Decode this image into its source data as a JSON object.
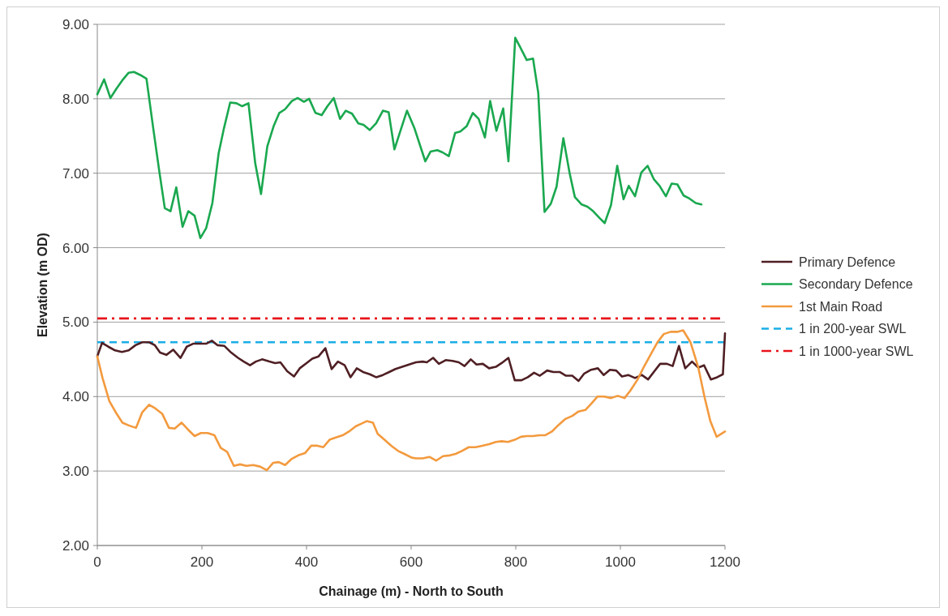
{
  "chart_data": {
    "type": "line",
    "xlabel": "Chainage (m) - North to South",
    "ylabel": "Elevation (m OD)",
    "xlim": [
      0,
      1200
    ],
    "xticks": [
      0,
      200,
      400,
      600,
      800,
      1000,
      1200
    ],
    "ylim": [
      2,
      9
    ],
    "yticks": [
      {
        "value": 2,
        "label": "2.00"
      },
      {
        "value": 3,
        "label": "3.00"
      },
      {
        "value": 4,
        "label": "4.00"
      },
      {
        "value": 5,
        "label": "5.00"
      },
      {
        "value": 6,
        "label": "6.00"
      },
      {
        "value": 7,
        "label": "7.00"
      },
      {
        "value": 8,
        "label": "8.00"
      },
      {
        "value": 9,
        "label": "9.00"
      }
    ],
    "grid": "y",
    "legend": "right",
    "line_style": "solid",
    "series": [
      {
        "name": "Primary Defence",
        "color": "#4f1f24",
        "x": [
          0,
          9,
          21,
          34,
          47,
          60,
          73,
          86,
          99,
          110,
          120,
          132,
          145,
          159,
          171,
          183,
          196,
          208,
          219,
          230,
          243,
          256,
          269,
          280,
          292,
          303,
          315,
          329,
          340,
          350,
          363,
          376,
          387,
          400,
          411,
          423,
          436,
          448,
          460,
          473,
          484,
          496,
          508,
          521,
          533,
          546,
          558,
          570,
          583,
          596,
          609,
          622,
          630,
          642,
          653,
          666,
          679,
          691,
          702,
          714,
          725,
          737,
          749,
          762,
          773,
          786,
          798,
          811,
          823,
          835,
          846,
          860,
          872,
          884,
          896,
          908,
          920,
          931,
          944,
          957,
          968,
          980,
          992,
          1003,
          1015,
          1028,
          1041,
          1053,
          1065,
          1076,
          1089,
          1100,
          1112,
          1124,
          1137,
          1149,
          1160,
          1173,
          1185,
          1196,
          1200
        ],
        "values": [
          4.54,
          4.72,
          4.67,
          4.62,
          4.6,
          4.62,
          4.69,
          4.73,
          4.73,
          4.69,
          4.59,
          4.56,
          4.63,
          4.52,
          4.67,
          4.71,
          4.71,
          4.71,
          4.75,
          4.69,
          4.68,
          4.59,
          4.52,
          4.47,
          4.42,
          4.47,
          4.5,
          4.47,
          4.45,
          4.46,
          4.34,
          4.27,
          4.38,
          4.45,
          4.51,
          4.54,
          4.65,
          4.37,
          4.47,
          4.42,
          4.26,
          4.38,
          4.33,
          4.3,
          4.26,
          4.29,
          4.33,
          4.37,
          4.4,
          4.43,
          4.46,
          4.47,
          4.46,
          4.52,
          4.44,
          4.49,
          4.48,
          4.46,
          4.41,
          4.5,
          4.43,
          4.44,
          4.38,
          4.4,
          4.45,
          4.52,
          4.22,
          4.22,
          4.26,
          4.32,
          4.28,
          4.35,
          4.33,
          4.33,
          4.28,
          4.28,
          4.21,
          4.31,
          4.36,
          4.38,
          4.29,
          4.36,
          4.35,
          4.27,
          4.29,
          4.25,
          4.29,
          4.23,
          4.34,
          4.44,
          4.44,
          4.41,
          4.68,
          4.38,
          4.47,
          4.39,
          4.42,
          4.23,
          4.26,
          4.3,
          4.85
        ]
      },
      {
        "name": "Secondary Defence",
        "color": "#1aa84f",
        "x": [
          0,
          13,
          25,
          37,
          48,
          60,
          70,
          82,
          94,
          107,
          118,
          129,
          140,
          151,
          163,
          174,
          186,
          197,
          208,
          220,
          232,
          242,
          254,
          266,
          277,
          289,
          302,
          313,
          325,
          337,
          348,
          359,
          372,
          383,
          395,
          405,
          417,
          429,
          440,
          452,
          464,
          475,
          487,
          499,
          509,
          521,
          533,
          546,
          557,
          568,
          580,
          592,
          606,
          627,
          637,
          650,
          660,
          672,
          684,
          694,
          706,
          718,
          729,
          741,
          751,
          763,
          776,
          786,
          799,
          808,
          821,
          833,
          843,
          855,
          867,
          878,
          891,
          903,
          913,
          926,
          937,
          948,
          960,
          970,
          982,
          994,
          1006,
          1016,
          1028,
          1040,
          1052,
          1064,
          1075,
          1087,
          1098,
          1109,
          1121,
          1132,
          1144,
          1155
        ],
        "values": [
          8.06,
          8.26,
          8.01,
          8.14,
          8.25,
          8.35,
          8.36,
          8.32,
          8.27,
          7.6,
          7.05,
          6.53,
          6.49,
          6.81,
          6.28,
          6.49,
          6.43,
          6.13,
          6.26,
          6.6,
          7.27,
          7.6,
          7.95,
          7.94,
          7.9,
          7.94,
          7.13,
          6.72,
          7.36,
          7.63,
          7.81,
          7.86,
          7.97,
          8.01,
          7.96,
          8,
          7.81,
          7.78,
          7.9,
          8.01,
          7.73,
          7.84,
          7.8,
          7.67,
          7.65,
          7.58,
          7.67,
          7.84,
          7.82,
          7.32,
          7.58,
          7.84,
          7.61,
          7.16,
          7.29,
          7.31,
          7.28,
          7.23,
          7.54,
          7.56,
          7.63,
          7.81,
          7.73,
          7.48,
          7.97,
          7.57,
          7.87,
          7.16,
          8.82,
          8.7,
          8.52,
          8.54,
          8.08,
          6.48,
          6.59,
          6.82,
          7.47,
          7,
          6.68,
          6.58,
          6.55,
          6.49,
          6.4,
          6.33,
          6.57,
          7.1,
          6.65,
          6.83,
          6.69,
          7.01,
          7.1,
          6.92,
          6.83,
          6.69,
          6.86,
          6.85,
          6.7,
          6.66,
          6.6,
          6.58
        ]
      },
      {
        "name": "1st Main Road",
        "color": "#f39a3e",
        "x": [
          0,
          10,
          23,
          36,
          48,
          61,
          74,
          86,
          99,
          111,
          124,
          137,
          148,
          161,
          173,
          186,
          198,
          211,
          224,
          236,
          248,
          261,
          273,
          285,
          298,
          311,
          324,
          336,
          347,
          359,
          371,
          384,
          397,
          409,
          421,
          432,
          444,
          456,
          469,
          481,
          494,
          506,
          515,
          527,
          536,
          549,
          562,
          575,
          587,
          601,
          609,
          622,
          635,
          648,
          661,
          674,
          685,
          697,
          710,
          723,
          736,
          749,
          762,
          773,
          785,
          798,
          810,
          821,
          833,
          845,
          856,
          869,
          882,
          895,
          908,
          920,
          933,
          945,
          956,
          969,
          982,
          995,
          1008,
          1019,
          1033,
          1045,
          1059,
          1071,
          1083,
          1096,
          1110,
          1120,
          1134,
          1149,
          1161,
          1172,
          1184,
          1200
        ],
        "values": [
          4.54,
          4.25,
          3.94,
          3.78,
          3.65,
          3.61,
          3.58,
          3.79,
          3.89,
          3.84,
          3.77,
          3.58,
          3.57,
          3.65,
          3.56,
          3.47,
          3.51,
          3.51,
          3.48,
          3.31,
          3.26,
          3.07,
          3.09,
          3.07,
          3.08,
          3.06,
          3.01,
          3.11,
          3.12,
          3.08,
          3.16,
          3.21,
          3.24,
          3.34,
          3.34,
          3.32,
          3.42,
          3.45,
          3.48,
          3.53,
          3.6,
          3.64,
          3.67,
          3.65,
          3.5,
          3.42,
          3.34,
          3.27,
          3.23,
          3.18,
          3.17,
          3.17,
          3.19,
          3.14,
          3.2,
          3.21,
          3.23,
          3.27,
          3.32,
          3.32,
          3.34,
          3.36,
          3.39,
          3.4,
          3.39,
          3.42,
          3.46,
          3.47,
          3.47,
          3.48,
          3.48,
          3.53,
          3.62,
          3.7,
          3.74,
          3.8,
          3.82,
          3.91,
          4,
          4,
          3.98,
          4.01,
          3.98,
          4.08,
          4.23,
          4.4,
          4.58,
          4.73,
          4.84,
          4.87,
          4.87,
          4.89,
          4.73,
          4.39,
          3.99,
          3.67,
          3.46,
          3.53
        ]
      }
    ],
    "ref_lines": [
      {
        "axis": "y",
        "value": 4.73,
        "label": "1 in 200-year SWL",
        "color": "#1aaee6",
        "line_style": "dashed"
      },
      {
        "axis": "y",
        "value": 5.05,
        "label": "1 in 1000-year SWL",
        "color": "#e8141b",
        "line_style": "dashdot"
      }
    ]
  }
}
